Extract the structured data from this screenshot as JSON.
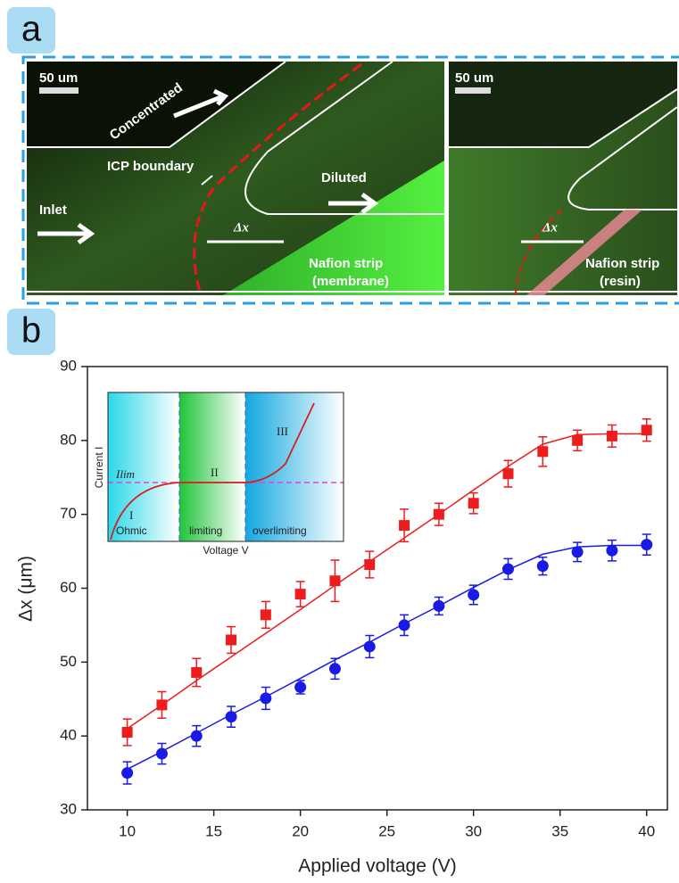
{
  "panel_a": {
    "label": "a",
    "left": {
      "scale_bar": "50 um",
      "concentrated": "Concentrated",
      "icp_boundary": "ICP boundary",
      "diluted": "Diluted",
      "inlet": "Inlet",
      "delta_x": "Δx",
      "strip": "Nafion strip",
      "strip_kind": "(membrane)"
    },
    "right": {
      "scale_bar": "50 um",
      "delta_x": "Δx",
      "strip": "Nafion strip",
      "strip_kind": "(resin)"
    }
  },
  "panel_b": {
    "label": "b"
  },
  "chart_data": {
    "type": "scatter",
    "x_label": "Applied voltage (V)",
    "y_label": "Δx (μm)",
    "x": [
      10,
      12,
      14,
      16,
      18,
      20,
      22,
      24,
      26,
      28,
      30,
      32,
      34,
      36,
      38,
      40
    ],
    "series": [
      {
        "color": "#ee1c1c",
        "marker": "square",
        "values": [
          40.5,
          44.2,
          48.6,
          53,
          56.4,
          59.2,
          61,
          63.2,
          68.5,
          70,
          71.5,
          75.5,
          78.5,
          80,
          80.6,
          81.4
        ],
        "errors": [
          1.8,
          1.8,
          1.9,
          1.8,
          1.8,
          1.7,
          2.8,
          1.8,
          2.2,
          1.5,
          1.4,
          1.8,
          2,
          1.4,
          1.5,
          1.5
        ],
        "fit": [
          41,
          44.2,
          47.5,
          50.7,
          53.9,
          57.1,
          60.4,
          63.6,
          66.8,
          70,
          73.3,
          76.5,
          79.5,
          80.8,
          80.9,
          80.9
        ]
      },
      {
        "color": "#1a1ae6",
        "marker": "circle",
        "values": [
          35,
          37.6,
          40,
          42.6,
          45.1,
          46.6,
          49.1,
          52.1,
          55,
          57.6,
          59.1,
          62.6,
          63,
          64.9,
          65.1,
          65.9
        ],
        "errors": [
          1.5,
          1.4,
          1.4,
          1.4,
          1.5,
          0.9,
          1.4,
          1.5,
          1.4,
          1.2,
          1.3,
          1.4,
          1.2,
          1.3,
          1.4,
          1.4
        ],
        "fit": [
          35.5,
          37.9,
          40.4,
          42.9,
          45.3,
          47.8,
          50.3,
          52.7,
          55.2,
          57.6,
          60.1,
          62.5,
          64.6,
          65.6,
          65.8,
          65.8
        ]
      }
    ],
    "xlim": [
      7.7,
      41.2
    ],
    "ylim": [
      30,
      90
    ],
    "xticks": [
      10,
      15,
      20,
      25,
      30,
      35,
      40
    ],
    "yticks": [
      30,
      40,
      50,
      60,
      70,
      80,
      90
    ],
    "inset": {
      "y_label": "Current I",
      "x_label": "Voltage V",
      "limit_current": "Ilim",
      "region_1": "I",
      "region_2": "II",
      "region_3": "III",
      "name_1": "Ohmic",
      "name_2": "limiting",
      "name_3": "overlimiting"
    }
  }
}
